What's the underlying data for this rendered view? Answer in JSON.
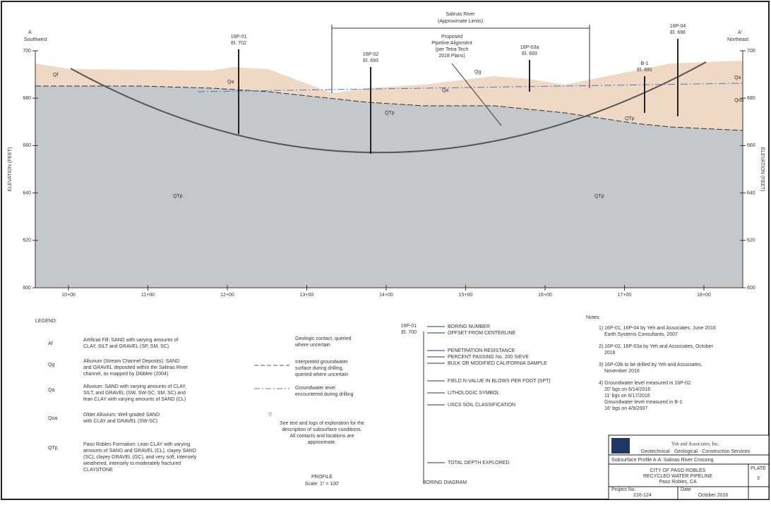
{
  "profile": {
    "start_label": "A",
    "start_direction": "Southwest",
    "end_label": "A'",
    "end_direction": "Northeast",
    "river": "Salinas River",
    "river_note": "(Approximate Limits)",
    "pipeline_note": [
      "Proposed",
      "Pipeline Alignment",
      "(per Tetra Tech",
      "2018 Plans)"
    ],
    "y_axis_label": "ELEVATION (FEET)",
    "elevations": [
      "700",
      "680",
      "660",
      "640",
      "620",
      "600"
    ],
    "stations": [
      "10+00",
      "11+00",
      "12+00",
      "13+00",
      "14+00",
      "15+00",
      "16+00",
      "17+00",
      "18+00"
    ],
    "borings": [
      {
        "name": "16P-01",
        "elevation": "El. 702"
      },
      {
        "name": "16P-02",
        "elevation": "El. 693"
      },
      {
        "name": "16P-03a",
        "elevation": "El. 693"
      },
      {
        "name": "B-1",
        "elevation": "El. 691"
      },
      {
        "name": "16P-04",
        "elevation": "El. 696"
      }
    ],
    "units": [
      "Qf",
      "Qa",
      "Qa",
      "Qg",
      "Qa",
      "Qoa",
      "QTp",
      "QTp",
      "QTp",
      "QTp"
    ],
    "title": "PROFILE",
    "scale": "Scale: 1\" = 100'"
  },
  "legend": {
    "title": "LEGEND:",
    "units": [
      {
        "symbol": "Af",
        "text": [
          "Artificial Fill: SAND with varying amounts of",
          "CLAY, SILT and GRAVEL (SP, SM, SC)"
        ]
      },
      {
        "symbol": "Qg",
        "text": [
          "Alluvium (Stream Channel Deposits): SAND",
          "and GRAVEL deposited within the Salinas River",
          "channel, as mapped by Dibblee (2004)"
        ]
      },
      {
        "symbol": "Qa",
        "text": [
          "Alluvium: SAND with varying amounts of CLAY,",
          "SILT, and GRAVEL (SW, SW-SC, SM, SC) and",
          "lean CLAY with varying amounts of SAND (CL)"
        ]
      },
      {
        "symbol": "Qoa",
        "text": [
          "Older Alluvium: Well-graded SAND",
          "with CLAY and GRAVEL (SW-SC)"
        ]
      },
      {
        "symbol": "QTp",
        "text": [
          "Paso Robles Formation: Lean CLAY with varying",
          "amounts of SAND and GRAVEL (CL), clayey SAND",
          "(SC), clayey GRAVEL (GC), and very soft, intensely",
          "weathered, intensely to moderately fractured",
          "CLAYSTONE"
        ]
      }
    ],
    "symbols": [
      [
        "Geologic contact, queried",
        "where uncertain"
      ],
      [
        "Interpreted groundwater",
        "surface during drilling,",
        "queried where uncertain"
      ],
      [
        "Groundwater level",
        "encountered during drilling"
      ]
    ],
    "note": [
      "See text and logs of exploration for the",
      "description of subsurface conditions.",
      "All contacts and locations are",
      "approximate."
    ]
  },
  "boring_diagram": {
    "title": "BORING DIAGRAM",
    "name": "16P-01",
    "offset": "El. 700",
    "labels": [
      "BORING NUMBER",
      "OFFSET FROM CENTERLINE",
      "PENETRATION RESISTANCE",
      "PERCENT PASSING No. 200 SIEVE",
      "BULK OR MODIFIED CALIFORNIA SAMPLE",
      "FIELD N-VALUE IN BLOWS PER FOOT (SPT)",
      "LITHOLOGIC SYMBOL",
      "USCS SOIL CLASSIFICATION",
      "TOTAL DEPTH EXPLORED"
    ]
  },
  "notes": {
    "title": "Notes:",
    "items": [
      [
        "1) 16P-01, 16P-04 by Yeh and Associates, June 2016",
        "Earth Systems Consultants, 2007"
      ],
      [
        "2) 16P-02, 16P-03a by Yeh and Associates, October",
        "2016"
      ],
      [
        "3) 16P-03b to be drilled by Yeh and Associates,",
        "November 2016"
      ],
      [
        "4) Groundwater level measured in 16P-02:",
        "20' bgs on 6/14/2016",
        "11' bgs on 6/17/2016",
        "Groundwater level measured in B-1:",
        "16' bgs on 4/9/2007"
      ]
    ]
  },
  "title_block": {
    "company": "Yeh and Associates, Inc.",
    "tagline": "Geotechnical · Geological · Construction Services",
    "drawing_title": "Subsurface Profile A-A' Salinas River Crossing",
    "client": [
      "CITY OF PASO ROBLES",
      "RECYCLED WATER PIPELINE",
      "Paso Robles, CA"
    ],
    "plate_label": "PLATE",
    "plate": "3",
    "project_label": "Project No.",
    "project_no": "216-124",
    "date_label": "Date",
    "date": "October 2016"
  }
}
